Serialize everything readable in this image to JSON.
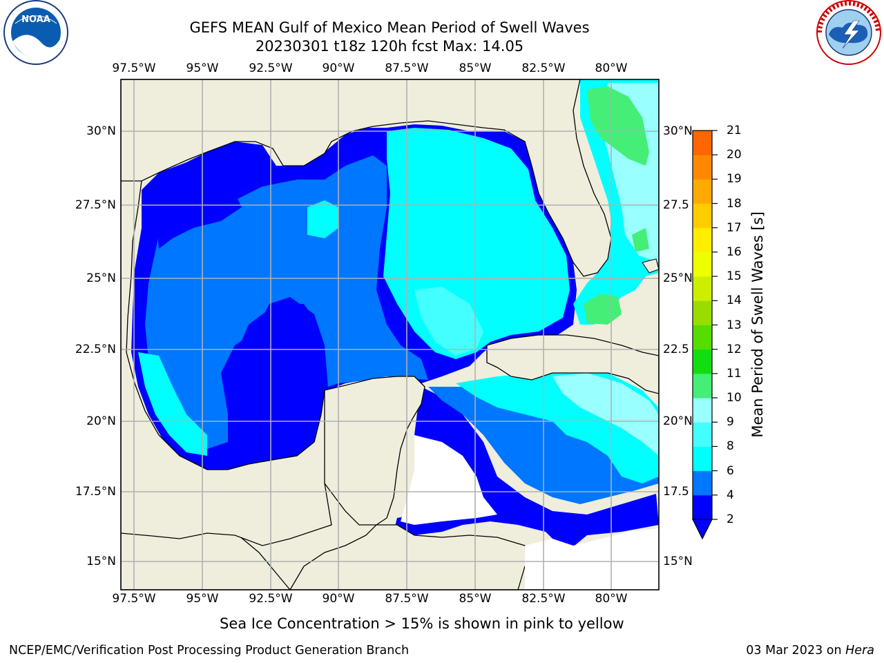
{
  "header": {
    "title_line1": "GEFS MEAN Gulf of Mexico Mean Period of Swell Waves",
    "title_line2": "20230301 t18z 120h fcst   Max: 14.05"
  },
  "logos": {
    "noaa_icon": "noaa-logo-icon",
    "noaa_text": "NOAA",
    "nws_icon": "national-weather-service-logo-icon"
  },
  "map": {
    "lon_ticks": [
      "97.5°W",
      "95°W",
      "92.5°W",
      "90°W",
      "87.5°W",
      "85°W",
      "82.5°W",
      "80°W"
    ],
    "lat_ticks_left": [
      "30°N",
      "27.5°N",
      "25°N",
      "22.5°N",
      "20°N",
      "17.5°N",
      "15°N"
    ],
    "lat_ticks_right": [
      "30°N",
      "27.5",
      "25°N",
      "22.5",
      "20°N",
      "17.5",
      "15°N"
    ],
    "lon_range": [
      -98,
      -78.3
    ],
    "lat_range": [
      14.0,
      31.8
    ],
    "land_color": "#efeddc",
    "grid": true
  },
  "colorbar": {
    "label": "Mean Period of Swell Waves [s]",
    "ticks": [
      "21",
      "20",
      "19",
      "18",
      "17",
      "16",
      "15",
      "14",
      "13",
      "12",
      "11",
      "10",
      "9",
      "8",
      "6",
      "4",
      "2"
    ],
    "colors": [
      "#0000ff",
      "#0077ff",
      "#00ffff",
      "#44ffff",
      "#99ffff",
      "#44ee77",
      "#11dd11",
      "#55dd00",
      "#99dd00",
      "#ccee00",
      "#eeff00",
      "#ffee00",
      "#ffcc00",
      "#ffaa00",
      "#ff8800",
      "#ff6600",
      "#ff3300",
      "#ff0000"
    ]
  },
  "chart_data": {
    "type": "heatmap",
    "variable": "Mean Period of Swell Waves [s]",
    "levels": [
      2,
      4,
      6,
      8,
      9,
      10,
      11,
      12,
      13,
      14,
      15,
      16,
      17,
      18,
      19,
      20,
      21
    ],
    "max": 14.05
  },
  "note": "Sea Ice Concentration > 15% is shown in pink to yellow",
  "footer": {
    "left": "NCEP/EMC/Verification Post Processing Product Generation Branch",
    "date": "03 Mar 2023 on ",
    "host": "Hera"
  }
}
